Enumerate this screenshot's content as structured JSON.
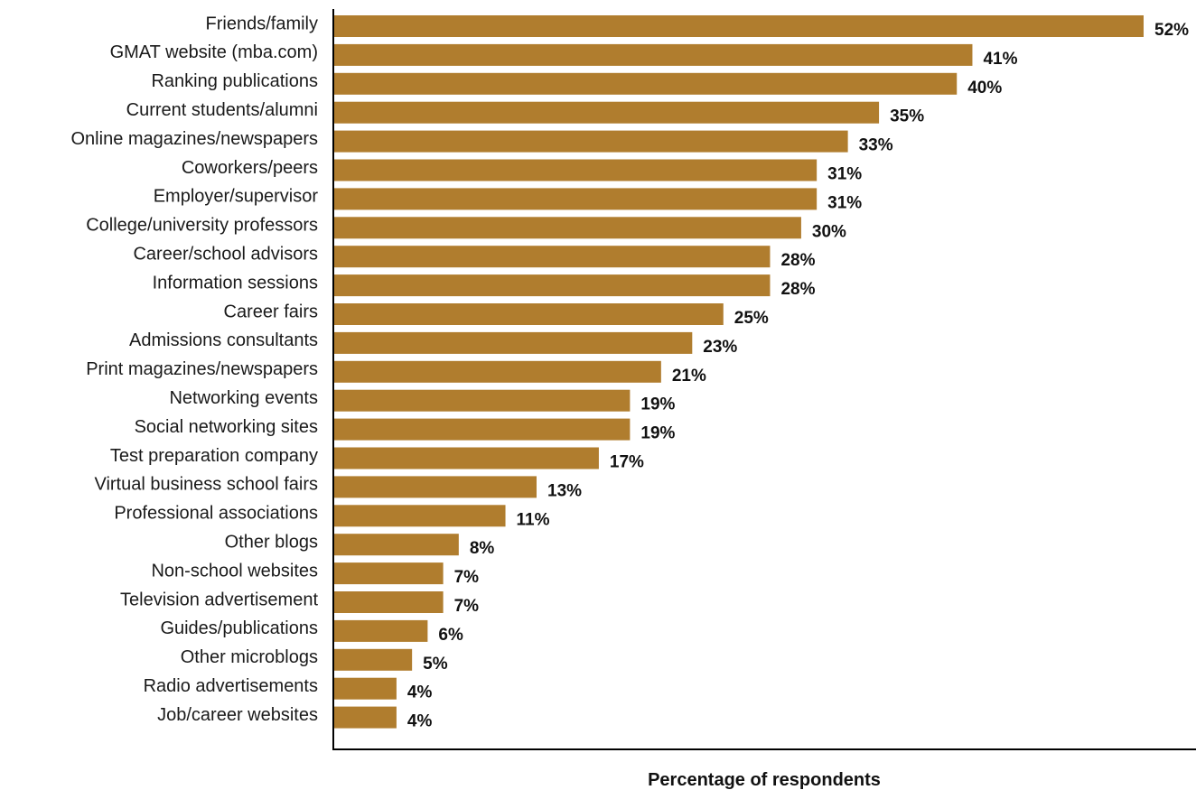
{
  "chart_data": {
    "type": "bar",
    "orientation": "horizontal",
    "xlabel": "Percentage of respondents",
    "ylabel": "",
    "xlim": [
      0,
      52
    ],
    "grid": false,
    "legend": "none",
    "bar_color": "#B07D2E",
    "value_suffix": "%",
    "categories": [
      "Friends/family",
      "GMAT website (mba.com)",
      "Ranking publications",
      "Current students/alumni",
      "Online magazines/newspapers",
      "Coworkers/peers",
      "Employer/supervisor",
      "College/university professors",
      "Career/school advisors",
      "Information sessions",
      "Career fairs",
      "Admissions consultants",
      "Print magazines/newspapers",
      "Networking events",
      "Social networking sites",
      "Test preparation company",
      "Virtual business school fairs",
      "Professional associations",
      "Other blogs",
      "Non-school websites",
      "Television advertisement",
      "Guides/publications",
      "Other microblogs",
      "Radio advertisements",
      "Job/career websites"
    ],
    "values": [
      52,
      41,
      40,
      35,
      33,
      31,
      31,
      30,
      28,
      28,
      25,
      23,
      21,
      19,
      19,
      17,
      13,
      11,
      8,
      7,
      7,
      6,
      5,
      4,
      4
    ]
  }
}
